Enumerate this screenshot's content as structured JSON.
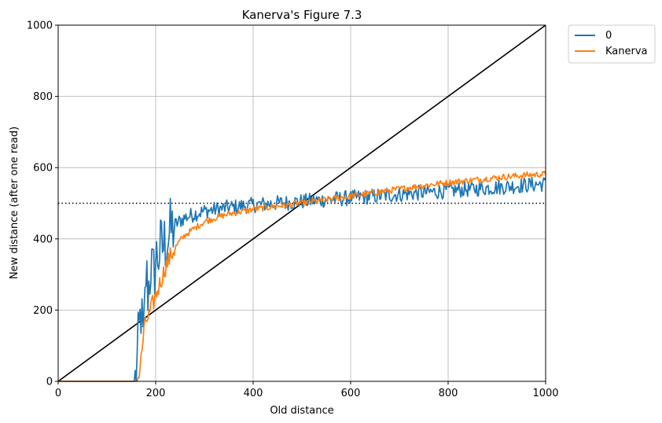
{
  "chart_data": {
    "type": "line",
    "title": "Kanerva's Figure 7.3",
    "xlabel": "Old distance",
    "ylabel": "New distance (after one read)",
    "xlim": [
      0,
      1000
    ],
    "ylim": [
      0,
      1000
    ],
    "x_ticks": [
      "0",
      "200",
      "400",
      "600",
      "800",
      "1000"
    ],
    "y_ticks": [
      "0",
      "200",
      "400",
      "600",
      "800",
      "1000"
    ],
    "grid": true,
    "legend_placement": "outside-top-right",
    "reference_lines": [
      {
        "kind": "diagonal",
        "from": [
          0,
          0
        ],
        "to": [
          1000,
          1000
        ],
        "color": "#000000",
        "style": "solid"
      },
      {
        "kind": "horizontal",
        "y": 500,
        "color": "#000000",
        "style": "dotted"
      }
    ],
    "series": [
      {
        "name": "0",
        "color": "#1f77b4",
        "noise": 22,
        "x": [
          0,
          150,
          160,
          165,
          170,
          175,
          180,
          185,
          190,
          195,
          200,
          210,
          220,
          230,
          240,
          250,
          260,
          280,
          300,
          320,
          350,
          400,
          450,
          500,
          550,
          600,
          650,
          700,
          750,
          800,
          850,
          900,
          950,
          1000
        ],
        "y": [
          0,
          0,
          0,
          120,
          200,
          90,
          300,
          250,
          330,
          290,
          340,
          370,
          390,
          420,
          440,
          450,
          460,
          470,
          478,
          482,
          488,
          495,
          500,
          505,
          510,
          515,
          520,
          525,
          530,
          535,
          540,
          545,
          550,
          555
        ]
      },
      {
        "name": "Kanerva",
        "color": "#ff7f0e",
        "noise": 9,
        "x": [
          0,
          160,
          165,
          170,
          175,
          180,
          185,
          190,
          195,
          200,
          210,
          220,
          230,
          240,
          250,
          260,
          280,
          300,
          320,
          350,
          400,
          450,
          500,
          550,
          600,
          650,
          700,
          750,
          800,
          850,
          900,
          950,
          1000
        ],
        "y": [
          0,
          0,
          10,
          60,
          130,
          170,
          180,
          200,
          220,
          240,
          280,
          320,
          350,
          375,
          395,
          410,
          430,
          448,
          458,
          470,
          483,
          492,
          500,
          510,
          520,
          530,
          540,
          550,
          558,
          565,
          572,
          578,
          582
        ]
      }
    ]
  }
}
